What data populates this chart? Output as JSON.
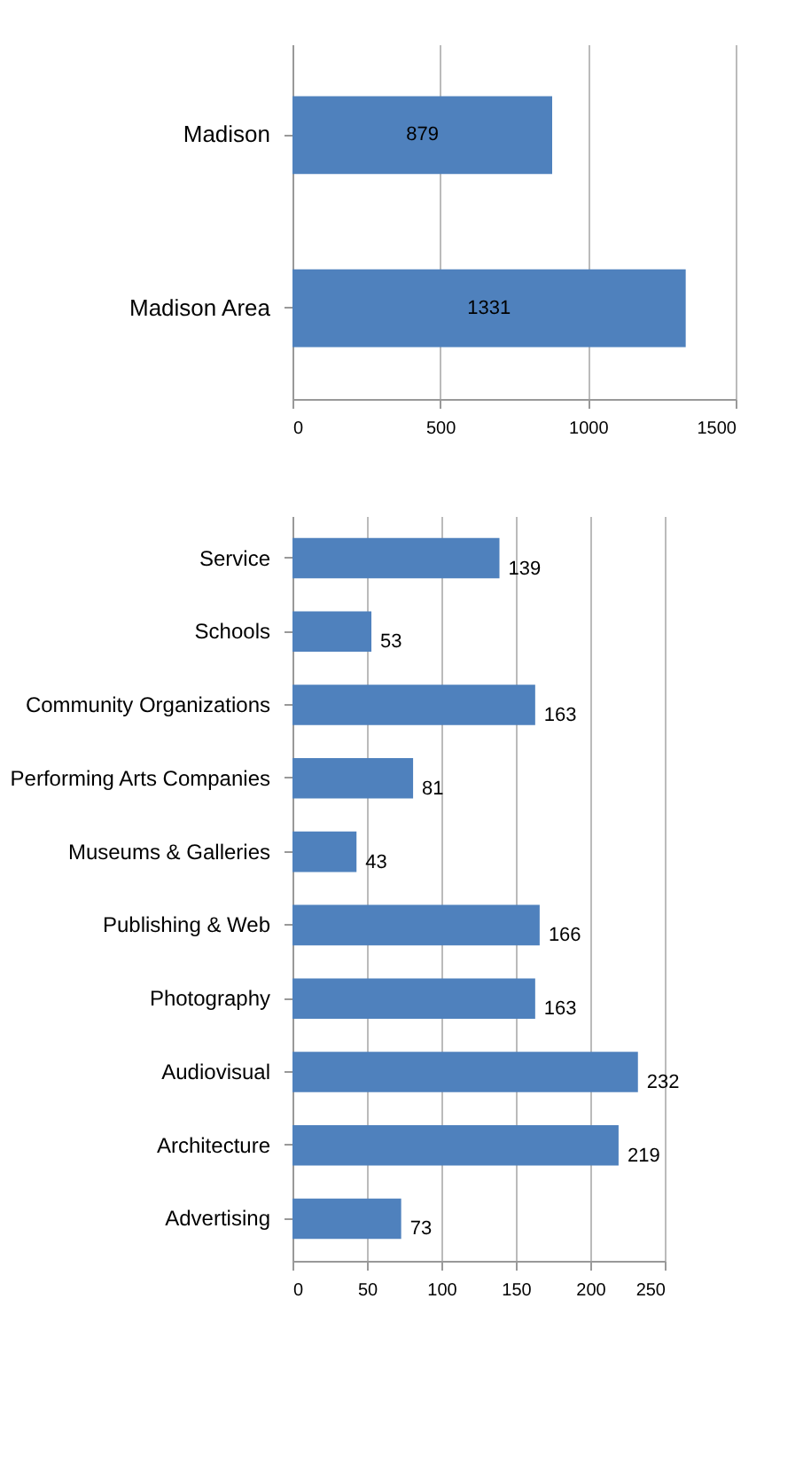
{
  "chart_data": [
    {
      "type": "bar",
      "orientation": "horizontal",
      "categories": [
        "Madison",
        "Madison Area"
      ],
      "values": [
        879,
        1331
      ],
      "color": "#4f81bd",
      "xlim": [
        0,
        1500
      ],
      "xticks": [
        0,
        500,
        1000,
        1500
      ],
      "grid": "x",
      "data_labels": true
    },
    {
      "type": "bar",
      "orientation": "horizontal",
      "categories": [
        "Service",
        "Schools",
        "Community Organizations",
        "Performing Arts Companies",
        "Museums & Galleries",
        "Publishing & Web",
        "Photography",
        "Audiovisual",
        "Architecture",
        "Advertising"
      ],
      "values": [
        139,
        53,
        163,
        81,
        43,
        166,
        163,
        232,
        219,
        73
      ],
      "color": "#4f81bd",
      "xlim": [
        0,
        250
      ],
      "xticks": [
        0,
        50,
        100,
        150,
        200,
        250
      ],
      "grid": "x",
      "data_labels": true
    }
  ]
}
